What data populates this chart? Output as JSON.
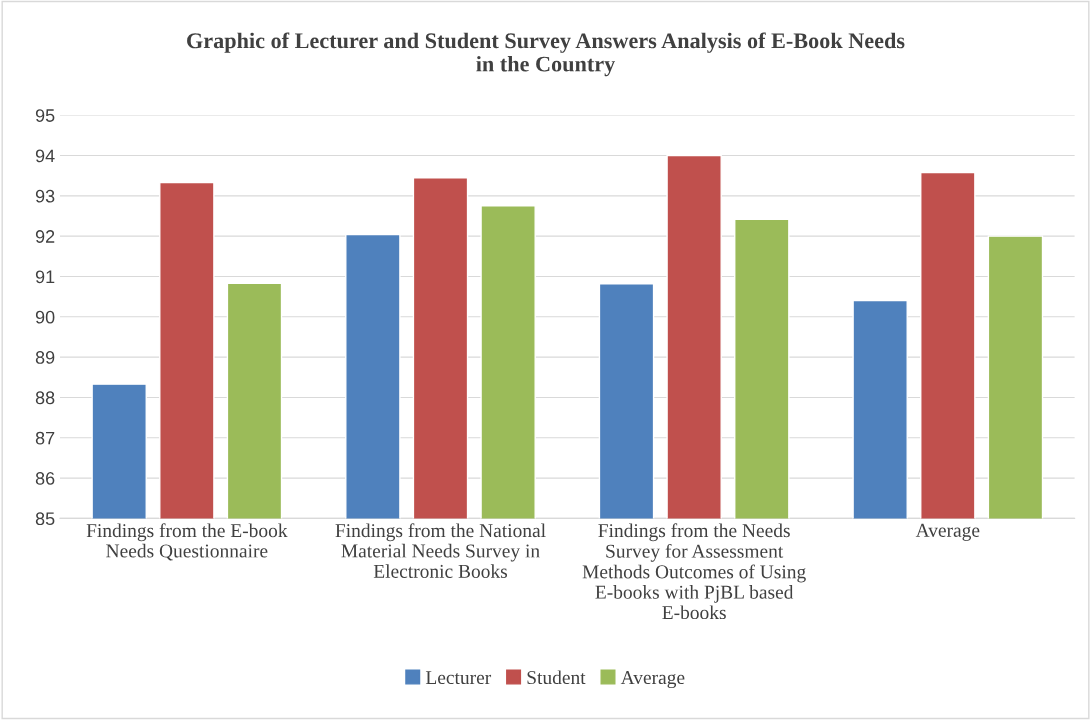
{
  "chart_data": {
    "type": "bar",
    "title": "Graphic of Lecturer and Student Survey Answers Analysis of E-Book Needs in the Country",
    "categories": [
      "Findings from the E-book Needs Questionnaire",
      "Findings from the National Material Needs Survey in Electronic Books",
      "Findings from the Needs Survey for Assessment Methods Outcomes of Using E-books with PjBL based E-books",
      "Average"
    ],
    "series": [
      {
        "name": "Lecturer",
        "color": "#4f81bd",
        "values": [
          88.33,
          92.04,
          90.82,
          90.4
        ]
      },
      {
        "name": "Student",
        "color": "#c0504d",
        "values": [
          93.33,
          93.45,
          94.0,
          93.58
        ]
      },
      {
        "name": "Average",
        "color": "#9bbb59",
        "values": [
          90.83,
          92.75,
          92.42,
          92.0
        ]
      }
    ],
    "ylim": [
      85,
      95
    ],
    "yticks": [
      85,
      86,
      87,
      88,
      89,
      90,
      91,
      92,
      93,
      94,
      95
    ],
    "grid": "y",
    "legend": "bottom"
  }
}
